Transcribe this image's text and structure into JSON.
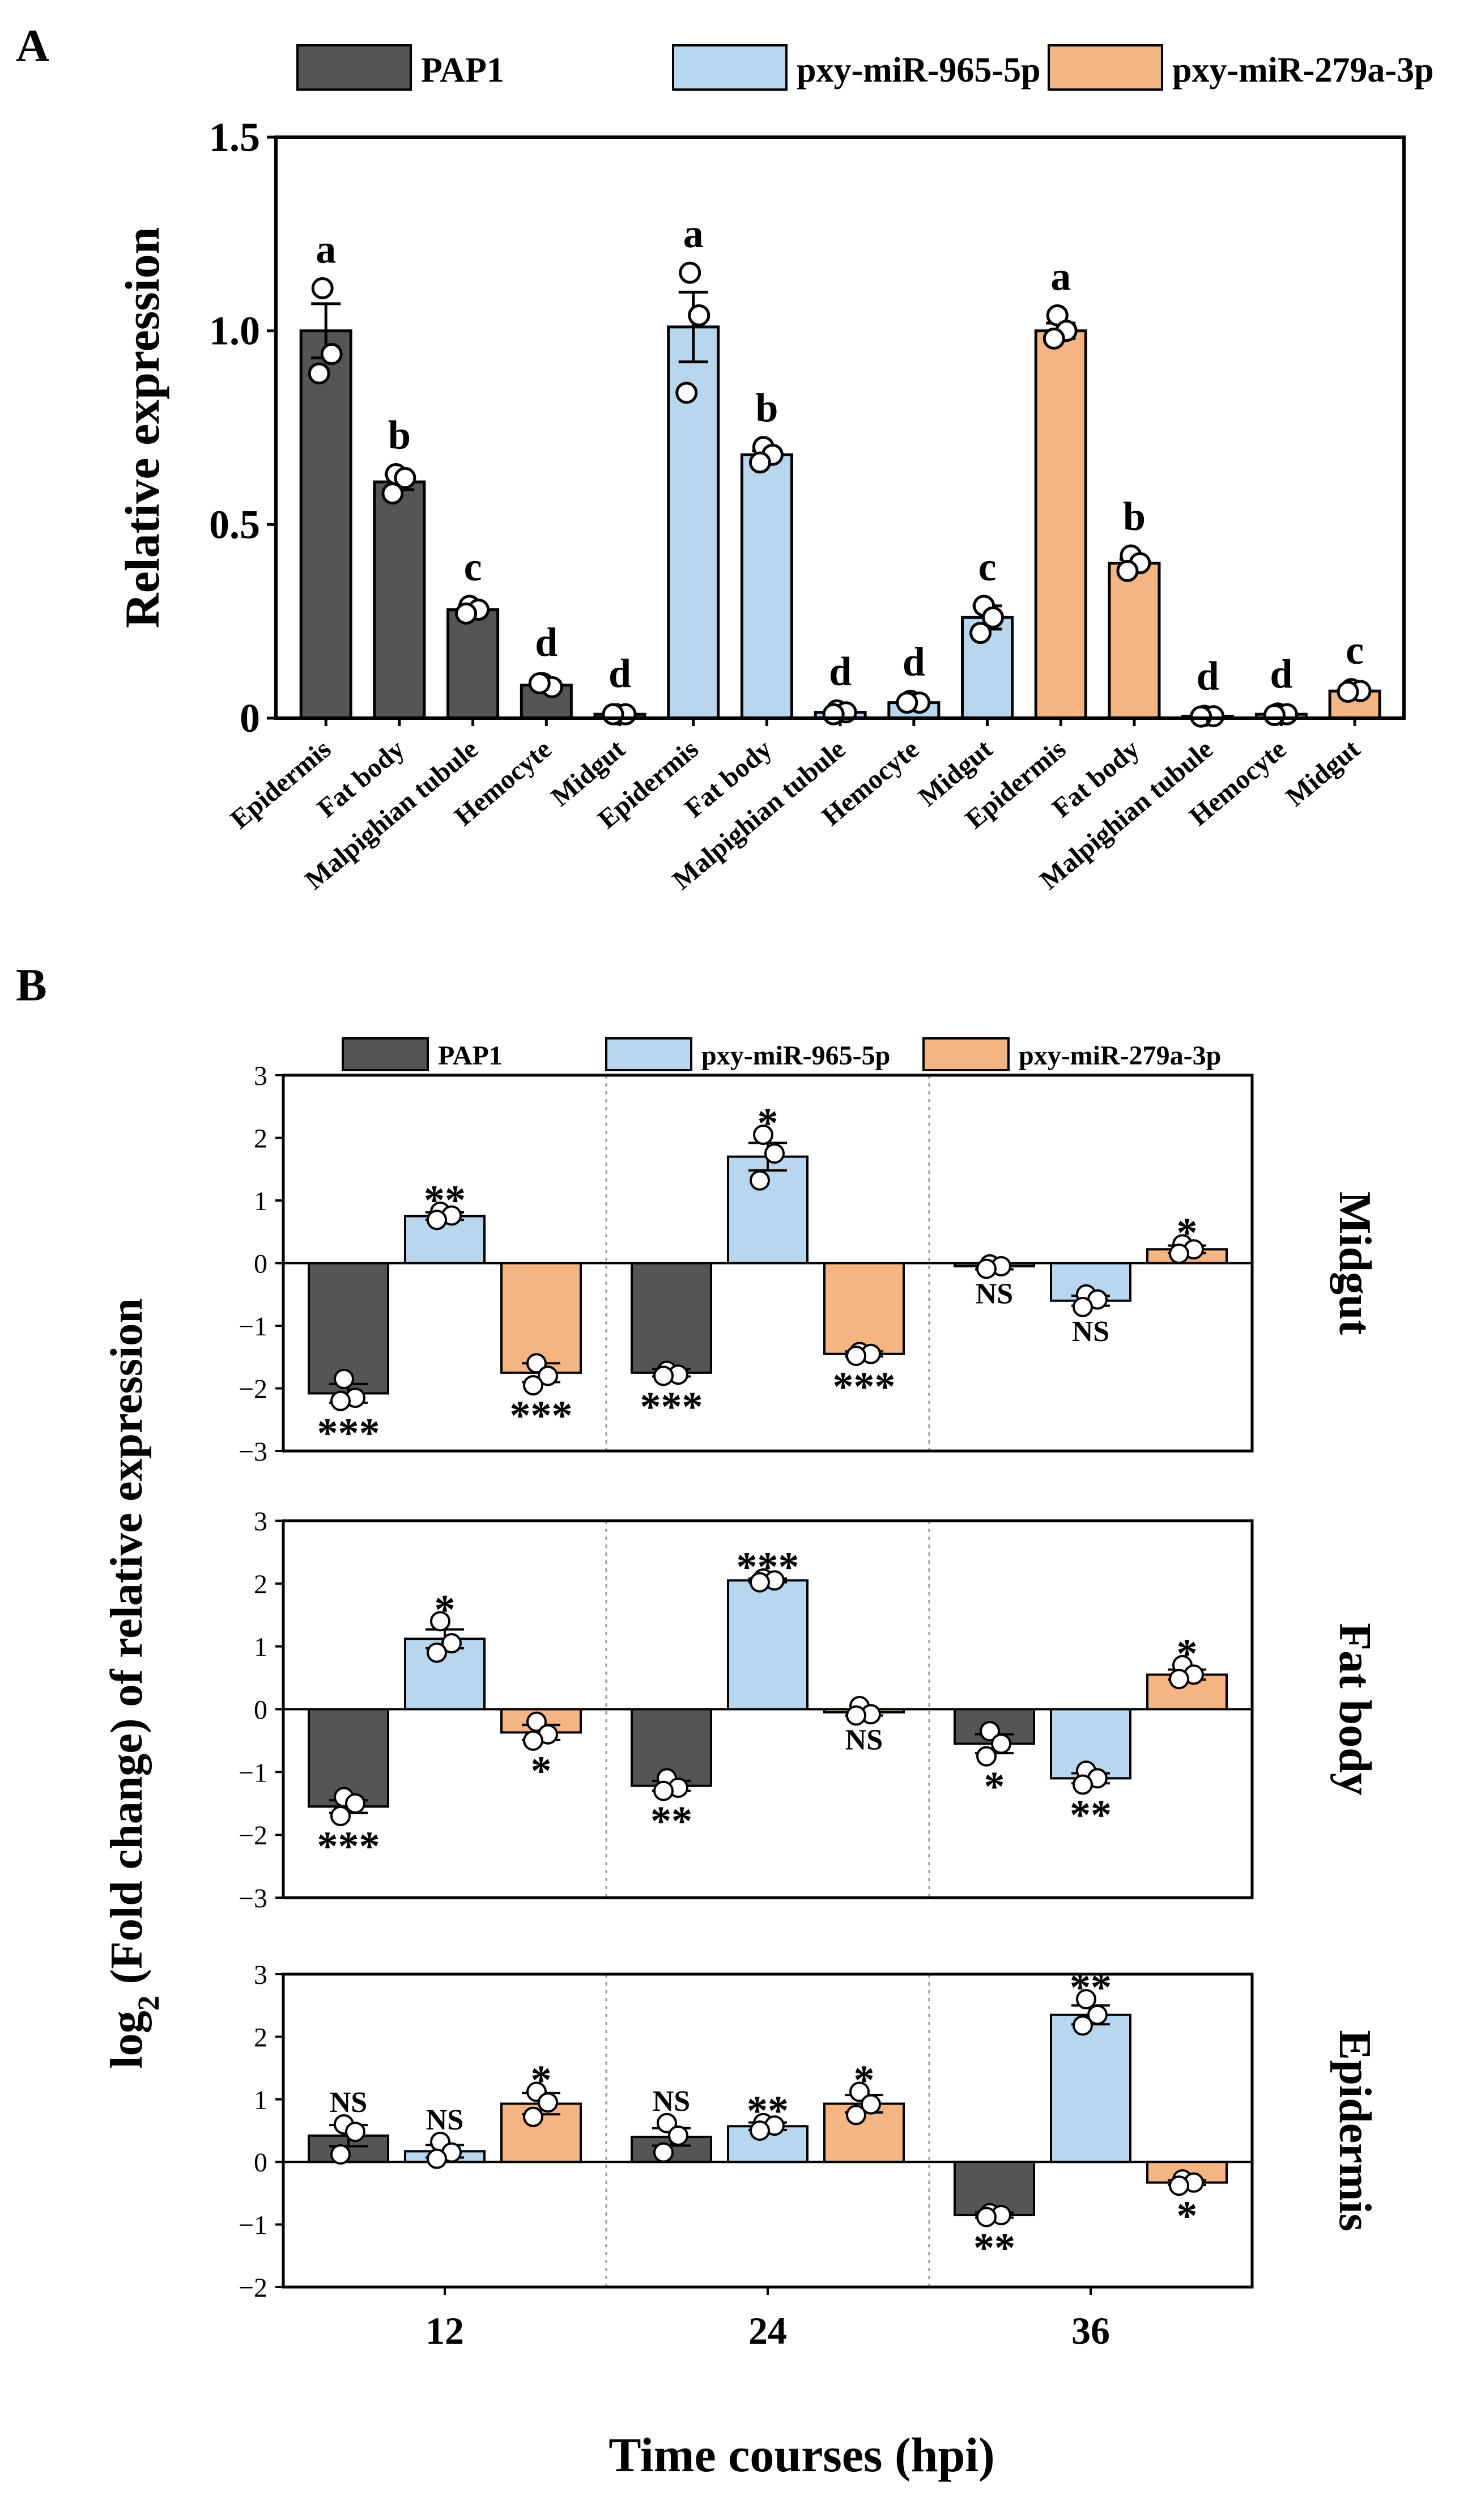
{
  "colors": {
    "PAP1": "#555555",
    "pxy-miR-965-5p": "#b8d7ee",
    "pxy-miR-279a-3p": "#f4b583",
    "axis": "#000000",
    "separator": "#999999"
  },
  "chart_data": [
    {
      "type": "bar",
      "panel_label": "A",
      "title": "",
      "xlabel": "",
      "ylabel": "Relative expression",
      "ylim": [
        0,
        1.5
      ],
      "yticks": [
        "0",
        "0.5",
        "1.0",
        "1.5"
      ],
      "legend": [
        "PAP1",
        "pxy-miR-965-5p",
        "pxy-miR-279a-3p"
      ],
      "legend_position": "top",
      "categories": [
        "Epidermis",
        "Fat body",
        "Malpighian tubule",
        "Hemocyte",
        "Midgut",
        "Epidermis",
        "Fat body",
        "Malpighian tubule",
        "Hemocyte",
        "Midgut",
        "Epidermis",
        "Fat body",
        "Malpighian tubule",
        "Hemocyte",
        "Midgut"
      ],
      "bars": [
        {
          "series": "PAP1",
          "tissue": "Epidermis",
          "value": 1.0,
          "error": 0.07,
          "letter": "a",
          "points": [
            1.11,
            0.94,
            0.89
          ]
        },
        {
          "series": "PAP1",
          "tissue": "Fat body",
          "value": 0.61,
          "error": 0.02,
          "letter": "b",
          "points": [
            0.63,
            0.62,
            0.58
          ]
        },
        {
          "series": "PAP1",
          "tissue": "Malpighian tubule",
          "value": 0.28,
          "error": 0.01,
          "letter": "c",
          "points": [
            0.29,
            0.28,
            0.27
          ]
        },
        {
          "series": "PAP1",
          "tissue": "Hemocyte",
          "value": 0.085,
          "error": 0.01,
          "letter": "d",
          "points": [
            0.09,
            0.08,
            0.09
          ]
        },
        {
          "series": "PAP1",
          "tissue": "Midgut",
          "value": 0.01,
          "error": 0.005,
          "letter": "d",
          "points": [
            0.01,
            0.01,
            0.01
          ]
        },
        {
          "series": "pxy-miR-965-5p",
          "tissue": "Epidermis",
          "value": 1.01,
          "error": 0.09,
          "letter": "a",
          "points": [
            1.15,
            1.04,
            0.84
          ]
        },
        {
          "series": "pxy-miR-965-5p",
          "tissue": "Fat body",
          "value": 0.68,
          "error": 0.01,
          "letter": "b",
          "points": [
            0.7,
            0.68,
            0.66
          ]
        },
        {
          "series": "pxy-miR-965-5p",
          "tissue": "Malpighian tubule",
          "value": 0.015,
          "error": 0.005,
          "letter": "d",
          "points": [
            0.02,
            0.015,
            0.01
          ]
        },
        {
          "series": "pxy-miR-965-5p",
          "tissue": "Hemocyte",
          "value": 0.04,
          "error": 0.005,
          "letter": "d",
          "points": [
            0.045,
            0.04,
            0.04
          ]
        },
        {
          "series": "pxy-miR-965-5p",
          "tissue": "Midgut",
          "value": 0.26,
          "error": 0.03,
          "letter": "c",
          "points": [
            0.29,
            0.26,
            0.22
          ]
        },
        {
          "series": "pxy-miR-279a-3p",
          "tissue": "Epidermis",
          "value": 1.0,
          "error": 0.02,
          "letter": "a",
          "points": [
            1.04,
            1.0,
            0.98
          ]
        },
        {
          "series": "pxy-miR-279a-3p",
          "tissue": "Fat body",
          "value": 0.4,
          "error": 0.01,
          "letter": "b",
          "points": [
            0.42,
            0.4,
            0.38
          ]
        },
        {
          "series": "pxy-miR-279a-3p",
          "tissue": "Malpighian tubule",
          "value": 0.005,
          "error": 0.003,
          "letter": "d",
          "points": [
            0.006,
            0.005,
            0.004
          ]
        },
        {
          "series": "pxy-miR-279a-3p",
          "tissue": "Hemocyte",
          "value": 0.01,
          "error": 0.003,
          "letter": "d",
          "points": [
            0.012,
            0.01,
            0.008
          ]
        },
        {
          "series": "pxy-miR-279a-3p",
          "tissue": "Midgut",
          "value": 0.07,
          "error": 0.005,
          "letter": "c",
          "points": [
            0.075,
            0.07,
            0.068
          ]
        }
      ]
    },
    {
      "type": "bar",
      "panel_label": "B",
      "title": "",
      "xlabel": "Time courses (hpi)",
      "ylabel_main": "log",
      "ylabel_sub": "2",
      "ylabel_rest": " (Fold change) of relative expression",
      "legend": [
        "PAP1",
        "pxy-miR-965-5p",
        "pxy-miR-279a-3p"
      ],
      "legend_position": "top",
      "categories": [
        "12",
        "24",
        "36"
      ],
      "subplots": [
        {
          "tissue": "Midgut",
          "ylim": [
            -3,
            3
          ],
          "yticks": [
            "-3",
            "-2",
            "-1",
            "0",
            "1",
            "2",
            "3"
          ],
          "series": [
            {
              "name": "PAP1",
              "values": [
                -2.08,
                -1.75,
                -0.05
              ],
              "errors": [
                0.15,
                0.06,
                0.05
              ],
              "sig": [
                "***",
                "***",
                "NS"
              ],
              "points": [
                [
                  -1.85,
                  -2.15,
                  -2.2
                ],
                [
                  -1.72,
                  -1.78,
                  -1.8
                ],
                [
                  -0.02,
                  -0.05,
                  -0.09
                ]
              ]
            },
            {
              "name": "pxy-miR-965-5p",
              "values": [
                0.75,
                1.7,
                -0.6
              ],
              "errors": [
                0.06,
                0.22,
                0.08
              ],
              "sig": [
                "**",
                "*",
                "NS"
              ],
              "points": [
                [
                  0.82,
                  0.76,
                  0.69
                ],
                [
                  2.05,
                  1.75,
                  1.32
                ],
                [
                  -0.5,
                  -0.58,
                  -0.7
                ]
              ]
            },
            {
              "name": "pxy-miR-279a-3p",
              "values": [
                -1.75,
                -1.45,
                0.22
              ],
              "errors": [
                0.15,
                0.04,
                0.06
              ],
              "sig": [
                "***",
                "***",
                "*"
              ],
              "points": [
                [
                  -1.6,
                  -1.8,
                  -1.95
                ],
                [
                  -1.42,
                  -1.45,
                  -1.48
                ],
                [
                  0.3,
                  0.22,
                  0.15
                ]
              ]
            }
          ]
        },
        {
          "tissue": "Fat body",
          "ylim": [
            -3,
            3
          ],
          "yticks": [
            "-3",
            "-2",
            "-1",
            "0",
            "1",
            "2",
            "3"
          ],
          "series": [
            {
              "name": "PAP1",
              "values": [
                -1.55,
                -1.22,
                -0.55
              ],
              "errors": [
                0.1,
                0.08,
                0.15
              ],
              "sig": [
                "***",
                "**",
                "*"
              ],
              "points": [
                [
                  -1.4,
                  -1.5,
                  -1.7
                ],
                [
                  -1.1,
                  -1.25,
                  -1.3
                ],
                [
                  -0.35,
                  -0.55,
                  -0.75
                ]
              ]
            },
            {
              "name": "pxy-miR-965-5p",
              "values": [
                1.12,
                2.05,
                -1.1
              ],
              "errors": [
                0.15,
                0.03,
                0.08
              ],
              "sig": [
                "*",
                "***",
                "**"
              ],
              "points": [
                [
                  1.4,
                  1.05,
                  0.9
                ],
                [
                  2.08,
                  2.05,
                  2.02
                ],
                [
                  -0.98,
                  -1.1,
                  -1.2
                ]
              ]
            },
            {
              "name": "pxy-miR-279a-3p",
              "values": [
                -0.37,
                -0.05,
                0.55
              ],
              "errors": [
                0.12,
                0.05,
                0.08
              ],
              "sig": [
                "*",
                "NS",
                "*"
              ],
              "points": [
                [
                  -0.2,
                  -0.4,
                  -0.5
                ],
                [
                  0.05,
                  -0.08,
                  -0.1
                ],
                [
                  0.7,
                  0.55,
                  0.48
                ]
              ]
            }
          ]
        },
        {
          "tissue": "Epidermis",
          "ylim": [
            -2,
            3
          ],
          "yticks": [
            "-2",
            "-1",
            "0",
            "1",
            "2",
            "3"
          ],
          "series": [
            {
              "name": "PAP1",
              "values": [
                0.42,
                0.4,
                -0.85
              ],
              "errors": [
                0.17,
                0.14,
                0.04
              ],
              "sig": [
                "NS",
                "NS",
                "**"
              ],
              "points": [
                [
                  0.6,
                  0.48,
                  0.12
                ],
                [
                  0.62,
                  0.42,
                  0.15
                ],
                [
                  -0.82,
                  -0.85,
                  -0.88
                ]
              ]
            },
            {
              "name": "pxy-miR-965-5p",
              "values": [
                0.17,
                0.57,
                2.35
              ],
              "errors": [
                0.1,
                0.06,
                0.15
              ],
              "sig": [
                "NS",
                "**",
                "**"
              ],
              "points": [
                [
                  0.32,
                  0.15,
                  0.05
                ],
                [
                  0.62,
                  0.58,
                  0.5
                ],
                [
                  2.6,
                  2.35,
                  2.18
                ]
              ]
            },
            {
              "name": "pxy-miR-279a-3p",
              "values": [
                0.93,
                0.93,
                -0.33
              ],
              "errors": [
                0.17,
                0.14,
                0.04
              ],
              "sig": [
                "*",
                "*",
                "*"
              ],
              "points": [
                [
                  1.12,
                  0.95,
                  0.72
                ],
                [
                  1.12,
                  0.92,
                  0.75
                ],
                [
                  -0.28,
                  -0.33,
                  -0.38
                ]
              ]
            }
          ]
        }
      ]
    }
  ]
}
